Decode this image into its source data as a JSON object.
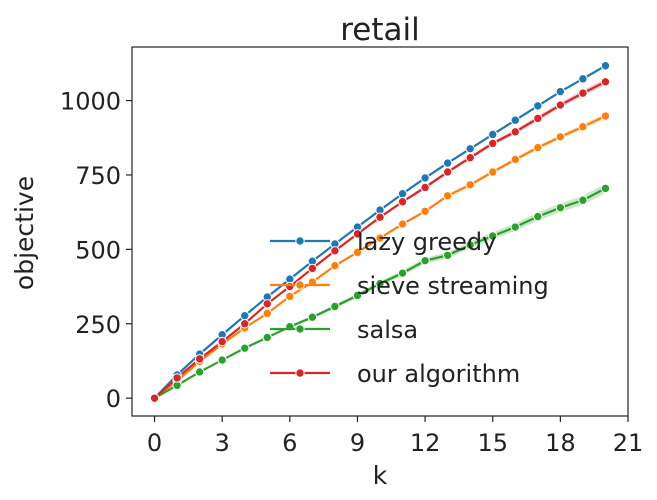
{
  "chart_data": {
    "type": "line",
    "title": "retail",
    "xlabel": "k",
    "ylabel": "objective",
    "xlim": [
      -1,
      21
    ],
    "ylim": [
      -60,
      1180
    ],
    "xticks": [
      0,
      3,
      6,
      9,
      12,
      15,
      18,
      21
    ],
    "yticks": [
      0,
      250,
      500,
      750,
      1000
    ],
    "grid": false,
    "legend_position": "lower-right",
    "x": [
      0,
      1,
      2,
      3,
      4,
      5,
      6,
      7,
      8,
      9,
      10,
      11,
      12,
      13,
      14,
      15,
      16,
      17,
      18,
      19,
      20
    ],
    "series": [
      {
        "name": "lazy greedy",
        "color": "#1f77b4",
        "values": [
          0,
          78,
          148,
          213,
          277,
          340,
          400,
          460,
          518,
          575,
          632,
          687,
          740,
          790,
          838,
          886,
          934,
          982,
          1030,
          1073,
          1117
        ],
        "band": 4
      },
      {
        "name": "sieve streaming",
        "color": "#ff7f0e",
        "values": [
          0,
          58,
          123,
          182,
          236,
          285,
          342,
          390,
          445,
          490,
          538,
          585,
          628,
          680,
          717,
          760,
          802,
          842,
          878,
          912,
          948
        ],
        "band": 8
      },
      {
        "name": "salsa",
        "color": "#2ca02c",
        "values": [
          0,
          43,
          88,
          128,
          168,
          204,
          240,
          272,
          308,
          345,
          385,
          420,
          462,
          480,
          515,
          545,
          575,
          610,
          640,
          665,
          705
        ],
        "band": 16
      },
      {
        "name": "our algorithm",
        "color": "#d62728",
        "values": [
          0,
          68,
          132,
          190,
          250,
          317,
          375,
          436,
          495,
          552,
          608,
          660,
          708,
          760,
          808,
          856,
          895,
          940,
          985,
          1025,
          1063
        ],
        "band": 10
      }
    ]
  }
}
